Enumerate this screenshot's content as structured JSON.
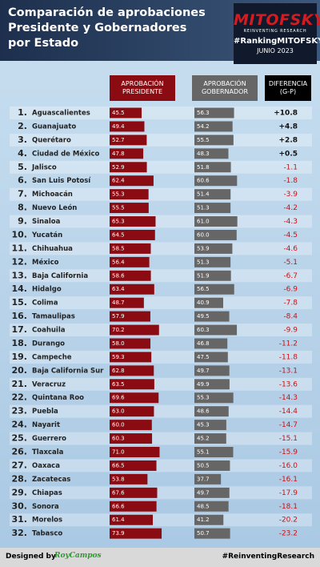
{
  "header": {
    "title": [
      "Comparación de aprobaciones",
      "Presidente y Gobernadores",
      "por Estado"
    ],
    "logo": {
      "brand": "MITOFSKY",
      "tagline": "REINVENTING RESEARCH",
      "hashtag": "#RankingMITOFSKY",
      "date": "JUNIO 2023"
    }
  },
  "chart_data": {
    "type": "bar",
    "ranks": [
      "1.",
      "2.",
      "3.",
      "4.",
      "5.",
      "6.",
      "7.",
      "8.",
      "9.",
      "10.",
      "11.",
      "12.",
      "13.",
      "14.",
      "15.",
      "16.",
      "17.",
      "18.",
      "19.",
      "20.",
      "21.",
      "22.",
      "23.",
      "24.",
      "25.",
      "26.",
      "27.",
      "28.",
      "29.",
      "30.",
      "31.",
      "32."
    ],
    "categories": [
      "Aguascalientes",
      "Guanajuato",
      "Querétaro",
      "Ciudad de México",
      "Jalisco",
      "San Luis Potosí",
      "Michoacán",
      "Nuevo León",
      "Sinaloa",
      "Yucatán",
      "Chihuahua",
      "México",
      "Baja California",
      "Hidalgo",
      "Colima",
      "Tamaulipas",
      "Coahuila",
      "Durango",
      "Campeche",
      "Baja California Sur",
      "Veracruz",
      "Quintana Roo",
      "Puebla",
      "Nayarit",
      "Guerrero",
      "Tlaxcala",
      "Oaxaca",
      "Zacatecas",
      "Chiapas",
      "Sonora",
      "Morelos",
      "Tabasco"
    ],
    "series": [
      {
        "name": "APROBACIÓN PRESIDENTE",
        "color": "#8a0c12",
        "values": [
          45.5,
          49.4,
          52.7,
          47.8,
          52.9,
          62.4,
          55.3,
          55.5,
          65.3,
          64.5,
          58.5,
          56.4,
          58.6,
          63.4,
          48.7,
          57.9,
          70.2,
          58.0,
          59.3,
          62.8,
          63.5,
          69.6,
          63.0,
          60.0,
          60.3,
          71.0,
          66.5,
          53.8,
          67.6,
          66.6,
          61.4,
          73.9
        ],
        "value_labels": [
          "45.5",
          "49.4",
          "52.7",
          "47.8",
          "52.9",
          "62.4",
          "55.3",
          "55.5",
          "65.3",
          "64.5",
          "58.5",
          "56.4",
          "58.6",
          "63.4",
          "48.7",
          "57.9",
          "70.2",
          "58.0",
          "59.3",
          "62.8",
          "63.5",
          "69.6",
          "63.0",
          "60.0",
          "60.3",
          "71.0",
          "66.5",
          "53.8",
          "67.6",
          "66.6",
          "61.4",
          "73.9"
        ]
      },
      {
        "name": "APROBACIÓN GOBERNADOR",
        "color": "#666666",
        "values": [
          56.3,
          54.2,
          55.5,
          48.3,
          51.8,
          60.6,
          51.4,
          51.3,
          61.0,
          60.0,
          53.9,
          51.3,
          51.9,
          56.5,
          40.9,
          49.5,
          60.3,
          46.8,
          47.5,
          49.7,
          49.9,
          55.3,
          48.6,
          45.3,
          45.2,
          55.1,
          50.5,
          37.7,
          49.7,
          48.5,
          41.2,
          50.7
        ],
        "value_labels": [
          "56.3",
          "54.2",
          "55.5",
          "48.3",
          "51.8",
          "60.6",
          "51.4",
          "51.3",
          "61.0",
          "60.0",
          "53.9",
          "51.3",
          "51.9",
          "56.5",
          "40.9",
          "49.5",
          "60.3",
          "46.8",
          "47.5",
          "49.7",
          "49.9",
          "55.3",
          "48.6",
          "45.3",
          "45.2",
          "55.1",
          "50.5",
          "37.7",
          "49.7",
          "48.5",
          "41.2",
          "50.7"
        ]
      }
    ],
    "difference": {
      "name": "DIFERENCIA (G-P)",
      "values": [
        10.8,
        4.8,
        2.8,
        0.5,
        -1.1,
        -1.8,
        -3.9,
        -4.2,
        -4.3,
        -4.5,
        -4.6,
        -5.1,
        -6.7,
        -6.9,
        -7.8,
        -8.4,
        -9.9,
        -11.2,
        -11.8,
        -13.1,
        -13.6,
        -14.3,
        -14.4,
        -14.7,
        -15.1,
        -15.9,
        -16.0,
        -16.1,
        -17.9,
        -18.1,
        -20.2,
        -23.2
      ],
      "value_labels": [
        "+10.8",
        "+4.8",
        "+2.8",
        "+0.5",
        "-1.1",
        "-1.8",
        "-3.9",
        "-4.2",
        "-4.3",
        "-4.5",
        "-4.6",
        "-5.1",
        "-6.7",
        "-6.9",
        "-7.8",
        "-8.4",
        "-9.9",
        "-11.2",
        "-11.8",
        "-13.1",
        "-13.6",
        "-14.3",
        "-14.4",
        "-14.7",
        "-15.1",
        "-15.9",
        "-16.0",
        "-16.1",
        "-17.9",
        "-18.1",
        "-20.2",
        "-23.2"
      ],
      "positive_color": "#111111",
      "negative_color": "#cc1111"
    }
  },
  "footer": {
    "credit": "Designed by",
    "author": "RoyCampos",
    "hashtag": "#ReinventingResearch"
  }
}
